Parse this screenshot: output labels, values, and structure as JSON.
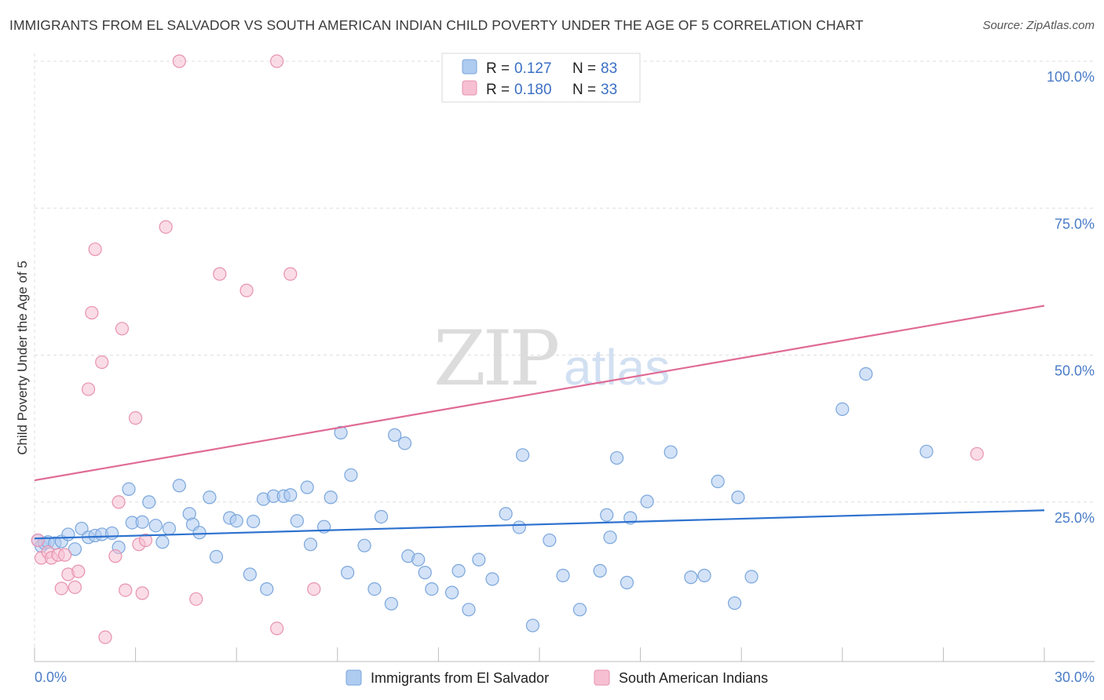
{
  "title": "IMMIGRANTS FROM EL SALVADOR VS SOUTH AMERICAN INDIAN CHILD POVERTY UNDER THE AGE OF 5 CORRELATION CHART",
  "source": "Source: ZipAtlas.com",
  "watermark": {
    "zip": "ZIP",
    "atlas": "atlas"
  },
  "colors": {
    "blue_fill": "#aecbf0",
    "blue_stroke": "#7aa6dc",
    "blue_line": "#2e72cf",
    "pink_fill": "#f6c0d2",
    "pink_stroke": "#e892ae",
    "pink_line": "#e06a95",
    "axis_text": "#4a7cc7",
    "grid": "#dedede"
  },
  "legend": {
    "rows": [
      {
        "r_label": "R = ",
        "r_value": "0.127",
        "n_label": "N = ",
        "n_value": "83",
        "color": "blue"
      },
      {
        "r_label": "R = ",
        "r_value": "0.180",
        "n_label": "N = ",
        "n_value": "33",
        "color": "pink"
      }
    ]
  },
  "chart_data": {
    "type": "scatter",
    "xlabel": "",
    "ylabel": "Child Poverty Under the Age of 5",
    "xlim": [
      0,
      30
    ],
    "ylim": [
      0,
      100
    ],
    "x_tick_labels": [
      "0.0%",
      "30.0%"
    ],
    "y_ticks": [
      25,
      50,
      75,
      100
    ],
    "y_tick_labels": [
      "25.0%",
      "50.0%",
      "75.0%",
      "100.0%"
    ],
    "grid": true,
    "legend_placement": "top-center",
    "series": [
      {
        "name": "Immigrants from El Salvador",
        "color": "blue",
        "trend": {
          "x": [
            0,
            30
          ],
          "y": [
            18.8,
            23.6
          ]
        },
        "points": [
          [
            0.1,
            18.5
          ],
          [
            0.2,
            17.5
          ],
          [
            0.3,
            18.0
          ],
          [
            0.4,
            18.2
          ],
          [
            0.6,
            18.0
          ],
          [
            0.8,
            18.3
          ],
          [
            1.0,
            19.5
          ],
          [
            1.2,
            17.0
          ],
          [
            1.4,
            20.5
          ],
          [
            1.6,
            19.0
          ],
          [
            1.8,
            19.3
          ],
          [
            2.0,
            19.5
          ],
          [
            2.3,
            19.7
          ],
          [
            2.5,
            17.3
          ],
          [
            2.8,
            27.2
          ],
          [
            2.9,
            21.5
          ],
          [
            3.2,
            21.6
          ],
          [
            3.4,
            25.0
          ],
          [
            3.6,
            21.0
          ],
          [
            3.8,
            18.2
          ],
          [
            4.0,
            20.5
          ],
          [
            4.6,
            23.0
          ],
          [
            4.7,
            21.2
          ],
          [
            4.3,
            27.8
          ],
          [
            4.9,
            19.8
          ],
          [
            5.2,
            25.8
          ],
          [
            5.4,
            15.7
          ],
          [
            5.8,
            22.3
          ],
          [
            6.0,
            21.8
          ],
          [
            6.4,
            12.7
          ],
          [
            6.5,
            21.7
          ],
          [
            6.8,
            25.5
          ],
          [
            6.9,
            10.2
          ],
          [
            7.1,
            26.0
          ],
          [
            7.4,
            26.0
          ],
          [
            7.6,
            26.2
          ],
          [
            7.8,
            21.8
          ],
          [
            8.1,
            27.5
          ],
          [
            8.2,
            17.8
          ],
          [
            8.6,
            20.8
          ],
          [
            8.8,
            25.8
          ],
          [
            9.1,
            36.8
          ],
          [
            9.3,
            13.0
          ],
          [
            9.4,
            29.6
          ],
          [
            9.8,
            17.6
          ],
          [
            10.1,
            10.2
          ],
          [
            10.3,
            22.5
          ],
          [
            10.6,
            7.7
          ],
          [
            10.7,
            36.4
          ],
          [
            11.0,
            35.0
          ],
          [
            11.1,
            15.8
          ],
          [
            11.4,
            15.2
          ],
          [
            11.6,
            13.0
          ],
          [
            11.8,
            10.2
          ],
          [
            12.4,
            9.6
          ],
          [
            12.6,
            13.3
          ],
          [
            12.9,
            6.7
          ],
          [
            13.2,
            15.2
          ],
          [
            13.6,
            11.9
          ],
          [
            14.0,
            23.0
          ],
          [
            14.4,
            20.7
          ],
          [
            14.5,
            33.0
          ],
          [
            14.8,
            4.0
          ],
          [
            15.3,
            18.5
          ],
          [
            15.7,
            12.5
          ],
          [
            16.2,
            6.7
          ],
          [
            16.8,
            13.3
          ],
          [
            17.0,
            22.8
          ],
          [
            17.1,
            19.0
          ],
          [
            17.3,
            32.5
          ],
          [
            17.6,
            11.3
          ],
          [
            17.7,
            22.3
          ],
          [
            18.2,
            25.1
          ],
          [
            18.9,
            33.5
          ],
          [
            19.5,
            12.2
          ],
          [
            19.9,
            12.5
          ],
          [
            20.3,
            28.5
          ],
          [
            20.8,
            7.8
          ],
          [
            20.9,
            25.8
          ],
          [
            21.3,
            12.3
          ],
          [
            24.0,
            40.8
          ],
          [
            24.7,
            46.8
          ],
          [
            26.5,
            33.6
          ]
        ]
      },
      {
        "name": "South American Indians",
        "color": "pink",
        "trend": {
          "x": [
            0,
            30
          ],
          "y": [
            28.7,
            58.4
          ]
        },
        "points": [
          [
            0.1,
            18.5
          ],
          [
            0.2,
            15.5
          ],
          [
            0.4,
            16.5
          ],
          [
            0.5,
            15.5
          ],
          [
            0.7,
            16.0
          ],
          [
            0.9,
            16.0
          ],
          [
            0.8,
            10.3
          ],
          [
            1.0,
            12.7
          ],
          [
            1.2,
            10.5
          ],
          [
            1.3,
            13.2
          ],
          [
            1.6,
            44.2
          ],
          [
            1.7,
            57.2
          ],
          [
            1.8,
            68.0
          ],
          [
            2.0,
            48.8
          ],
          [
            2.1,
            2.0
          ],
          [
            2.4,
            15.8
          ],
          [
            2.5,
            25.0
          ],
          [
            2.6,
            54.5
          ],
          [
            2.7,
            10.0
          ],
          [
            3.0,
            39.3
          ],
          [
            3.1,
            17.8
          ],
          [
            3.2,
            9.5
          ],
          [
            3.3,
            18.5
          ],
          [
            3.9,
            71.8
          ],
          [
            4.3,
            100.0
          ],
          [
            4.8,
            8.5
          ],
          [
            5.5,
            63.8
          ],
          [
            6.3,
            61.0
          ],
          [
            7.2,
            100.0
          ],
          [
            7.2,
            3.5
          ],
          [
            7.6,
            63.8
          ],
          [
            8.3,
            10.2
          ],
          [
            28.0,
            33.2
          ]
        ]
      }
    ],
    "bottom_legend": [
      "Immigrants from El Salvador",
      "South American Indians"
    ]
  }
}
